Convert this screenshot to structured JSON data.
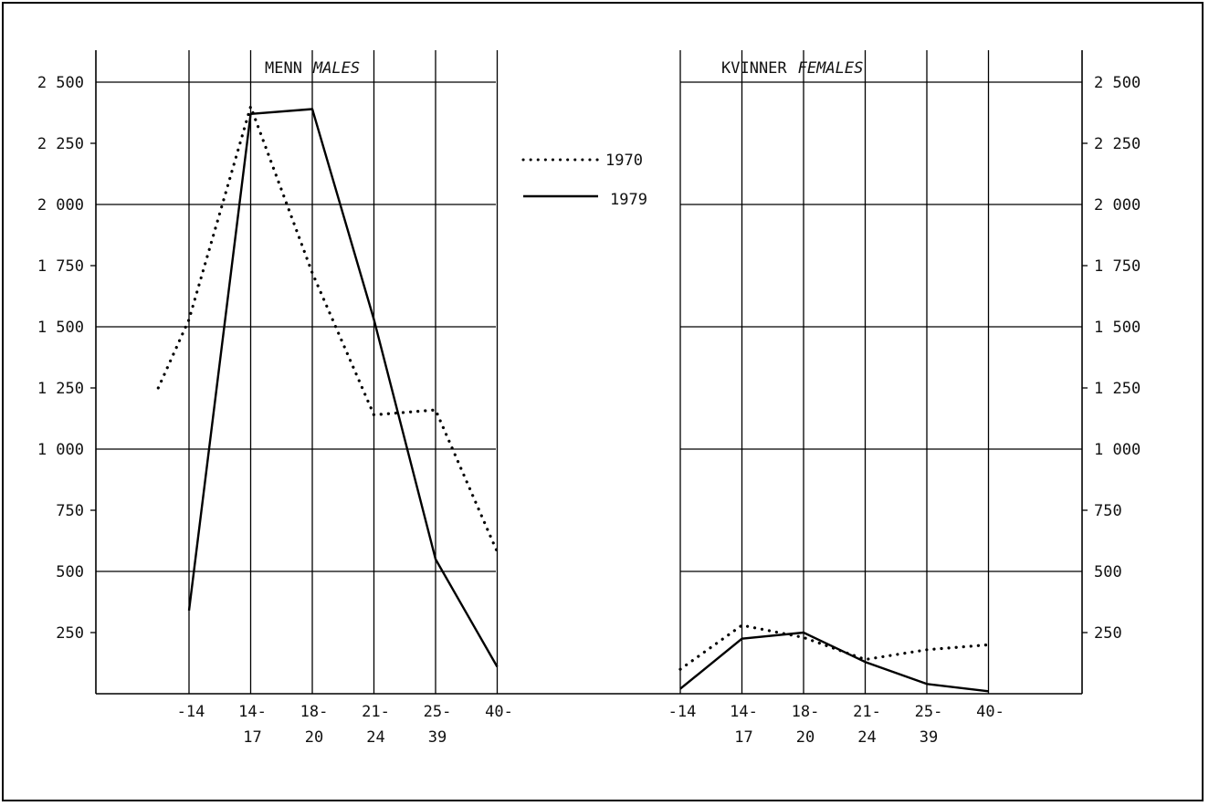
{
  "chart_data": {
    "type": "line",
    "categories": [
      [
        "-14",
        ""
      ],
      [
        "14-",
        "17"
      ],
      [
        "18-",
        "20"
      ],
      [
        "21-",
        "24"
      ],
      [
        "25-",
        "39"
      ],
      [
        "40-",
        ""
      ]
    ],
    "y_ticks": [
      "250",
      "500",
      "750",
      "1 000",
      "1 250",
      "1 500",
      "1 750",
      "2 000",
      "2 250",
      "2 500"
    ],
    "ylim": [
      0,
      2500
    ],
    "grid": true,
    "legend": {
      "position": "top-center",
      "entries": [
        {
          "label": "1970",
          "style": "dotted"
        },
        {
          "label": "1979",
          "style": "solid"
        }
      ]
    },
    "panels": [
      {
        "title_main": "MENN",
        "title_italic": "MALES",
        "series": [
          {
            "name": "1970",
            "style": "dotted",
            "x": [
              -0.5,
              0,
              1,
              2,
              3,
              4,
              5
            ],
            "values": [
              1250,
              1530,
              2400,
              1720,
              1140,
              1160,
              580
            ]
          },
          {
            "name": "1979",
            "style": "solid",
            "x": [
              0,
              1,
              2,
              3,
              4,
              5
            ],
            "values": [
              340,
              2370,
              2390,
              1530,
              550,
              110
            ]
          }
        ]
      },
      {
        "title_main": "KVINNER",
        "title_italic": "FEMALES",
        "series": [
          {
            "name": "1970",
            "style": "dotted",
            "x": [
              0,
              1,
              2,
              3,
              4,
              5
            ],
            "values": [
              100,
              280,
              230,
              140,
              180,
              200
            ]
          },
          {
            "name": "1979",
            "style": "solid",
            "x": [
              0,
              1,
              2,
              3,
              4,
              5
            ],
            "values": [
              20,
              225,
              250,
              130,
              40,
              10
            ]
          }
        ]
      }
    ]
  }
}
